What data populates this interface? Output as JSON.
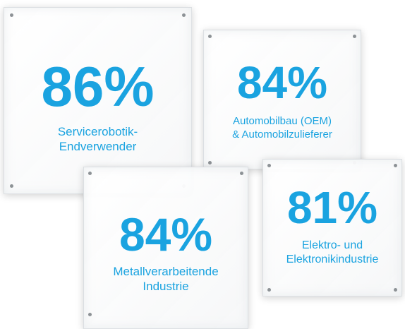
{
  "panels": [
    {
      "value": "86%",
      "label": [
        "Servicerobotik-",
        "Endverwender"
      ]
    },
    {
      "value": "84%",
      "label": [
        "Automobilbau (OEM)",
        "& Automobilzulieferer"
      ]
    },
    {
      "value": "84%",
      "label": [
        "Metallverarbeitende",
        "Industrie"
      ]
    },
    {
      "value": "81%",
      "label": [
        "Elektro- und",
        "Elektronikindustrie"
      ]
    }
  ]
}
